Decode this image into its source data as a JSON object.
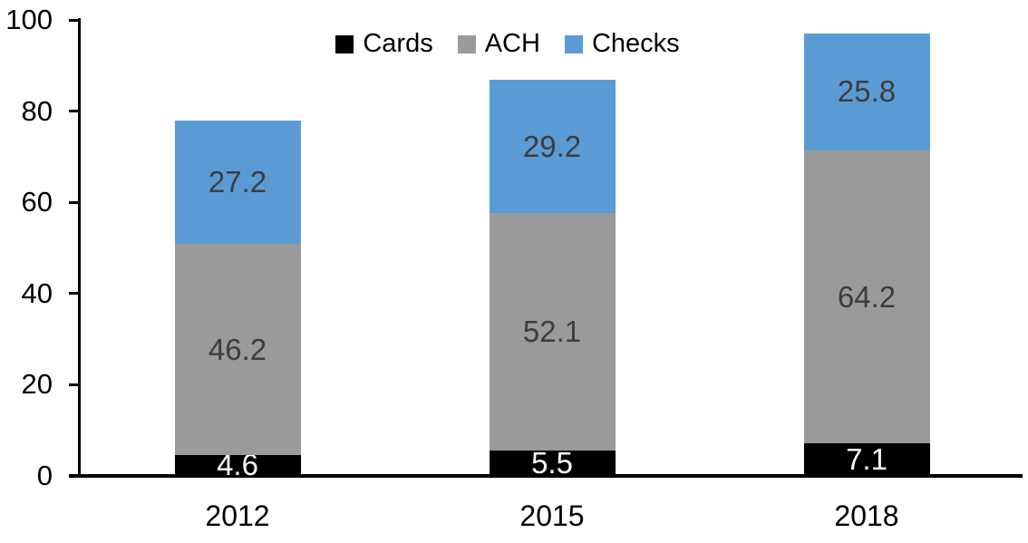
{
  "chart_data": {
    "type": "bar",
    "stacked": true,
    "title": "",
    "xlabel": "",
    "ylabel": "",
    "categories": [
      "2012",
      "2015",
      "2018"
    ],
    "series": [
      {
        "name": "Cards",
        "color": "#000000",
        "label_color": "#ffffff",
        "values": [
          4.6,
          5.5,
          7.1
        ]
      },
      {
        "name": "ACH",
        "color": "#9a9a9a",
        "label_color": "#3d3d3d",
        "values": [
          46.2,
          52.1,
          64.2
        ]
      },
      {
        "name": "Checks",
        "color": "#5b9bd5",
        "label_color": "#3d3d3d",
        "values": [
          27.2,
          29.2,
          25.8
        ]
      }
    ],
    "totals": [
      78.0,
      86.8,
      97.1
    ],
    "y_axis": {
      "min": 0,
      "max": 100,
      "tick_step": 20,
      "ticks": [
        0,
        20,
        40,
        60,
        80,
        100
      ]
    },
    "legend": {
      "position": "top",
      "entries": [
        "Cards",
        "ACH",
        "Checks"
      ]
    },
    "grid": false,
    "axis_color": "#000000",
    "background_color": "#ffffff"
  }
}
